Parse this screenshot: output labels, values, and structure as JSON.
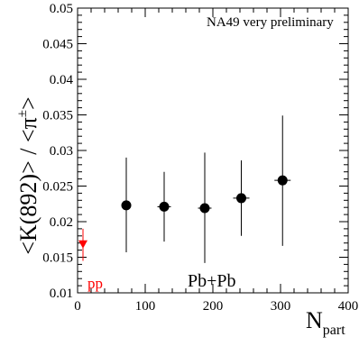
{
  "chart_data": {
    "type": "scatter",
    "title": "",
    "xlabel": "N",
    "xlabel_sub": "part",
    "ylabel": "<K(892)> / <π",
    "ylabel_sup": "±",
    "ylabel_end": ">",
    "xlim": [
      0,
      400
    ],
    "ylim": [
      0.01,
      0.05
    ],
    "xticks": [
      0,
      100,
      200,
      300,
      400
    ],
    "xtick_labels": [
      "0",
      "100",
      "200",
      "300",
      "400"
    ],
    "yticks": [
      0.01,
      0.015,
      0.02,
      0.025,
      0.03,
      0.035,
      0.04,
      0.045,
      0.05
    ],
    "ytick_labels": [
      "0.01",
      "0.015",
      "0.02",
      "0.025",
      "0.03",
      "0.035",
      "0.04",
      "0.045",
      "0.05"
    ],
    "grid": false,
    "annotations": {
      "preliminary": "NA49 very preliminary",
      "system": "Pb+Pb",
      "pp_label": "pp"
    },
    "series": [
      {
        "name": "Pb+Pb",
        "color": "#000000",
        "marker": "circle",
        "points": [
          {
            "x": 72,
            "y": 0.0223,
            "ylow": 0.0157,
            "yhigh": 0.029,
            "xerr": 0
          },
          {
            "x": 128,
            "y": 0.0221,
            "ylow": 0.0172,
            "yhigh": 0.027,
            "xerr": 10
          },
          {
            "x": 188,
            "y": 0.0219,
            "ylow": 0.0142,
            "yhigh": 0.0297,
            "xerr": 10
          },
          {
            "x": 242,
            "y": 0.0233,
            "ylow": 0.018,
            "yhigh": 0.0286,
            "xerr": 12
          },
          {
            "x": 303,
            "y": 0.0258,
            "ylow": 0.0166,
            "yhigh": 0.0349,
            "xerr": 12
          }
        ]
      },
      {
        "name": "pp",
        "color": "#ff0000",
        "marker": "triangle-down",
        "points": [
          {
            "x": 8,
            "y": 0.0168,
            "ylow": 0.0145,
            "yhigh": 0.019,
            "xerr": 0
          }
        ]
      }
    ]
  }
}
